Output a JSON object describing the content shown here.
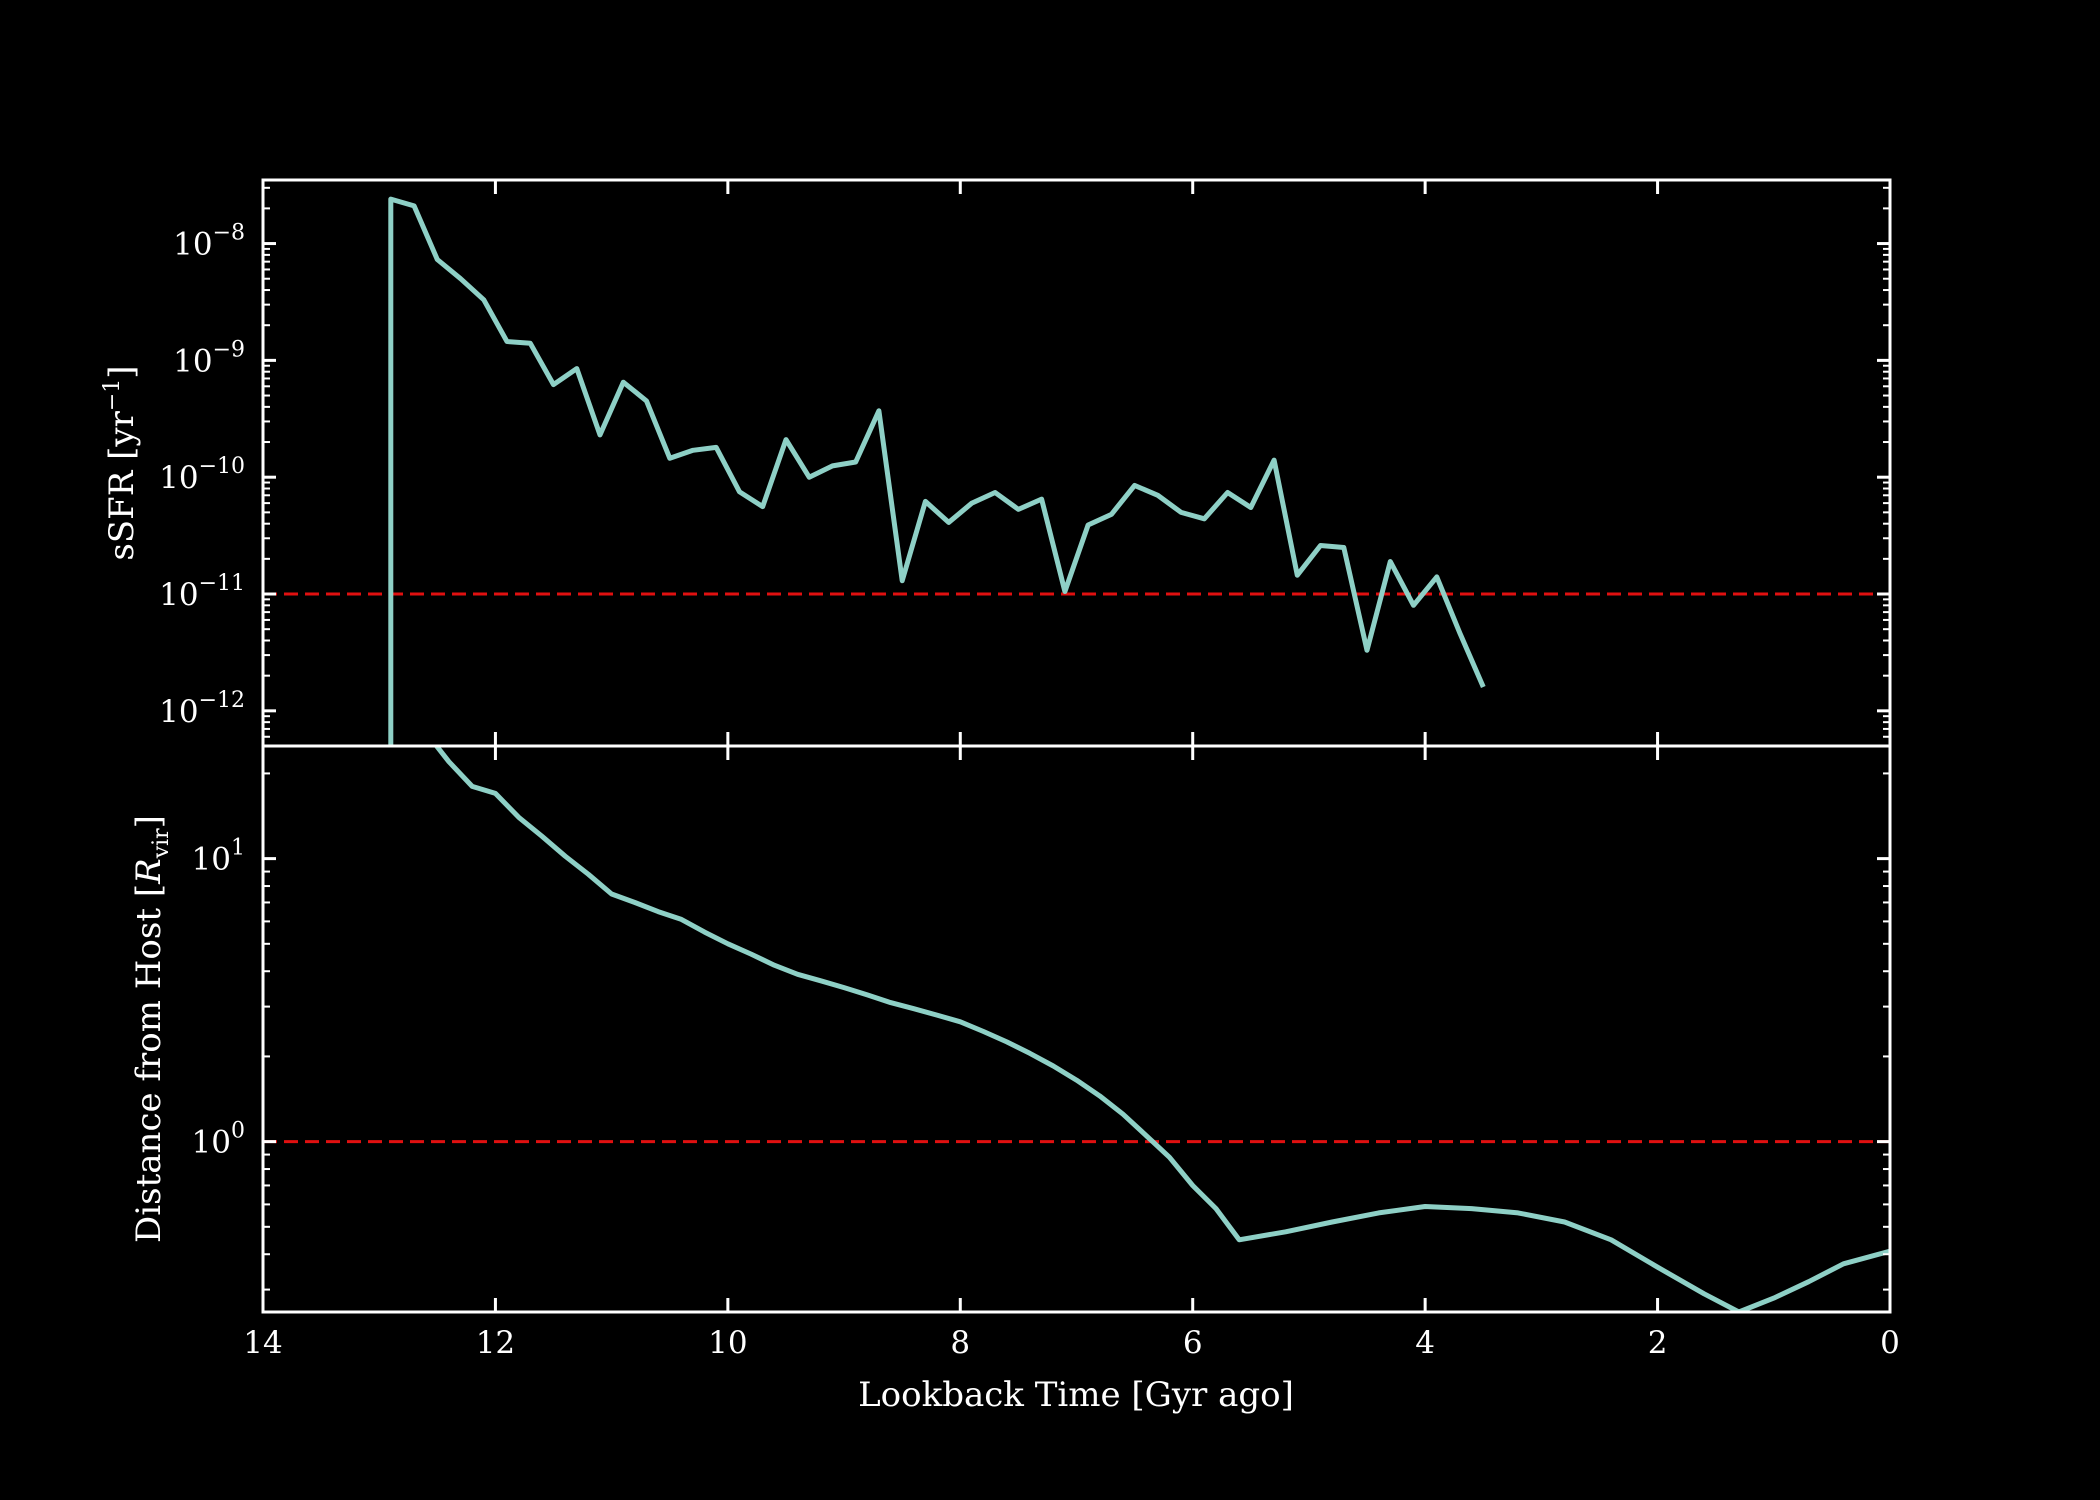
{
  "chart_data": {
    "type": "line",
    "colors": {
      "background": "#000000",
      "axes": "#ffffff",
      "series": "#8ed0c6",
      "threshold": "#e01010"
    },
    "xlabel": "Lookback Time [Gyr ago]",
    "xlim": [
      14,
      0
    ],
    "xticks": [
      14,
      12,
      10,
      8,
      6,
      4,
      2,
      0
    ],
    "xtick_labels": [
      "14",
      "12",
      "10",
      "8",
      "6",
      "4",
      "2",
      "0"
    ],
    "panels": [
      {
        "id": "ssfr",
        "ylabel_main": "sSFR [yr",
        "ylabel_sup": "−1",
        "ylabel_end": "]",
        "yscale": "log",
        "ylim": [
          5e-13,
          3.5e-08
        ],
        "yticks": [
          {
            "value": 1e-08,
            "base": "10",
            "exp": "−8"
          },
          {
            "value": 1e-09,
            "base": "10",
            "exp": "−9"
          },
          {
            "value": 1e-10,
            "base": "10",
            "exp": "−10"
          },
          {
            "value": 1e-11,
            "base": "10",
            "exp": "−11"
          },
          {
            "value": 1e-12,
            "base": "10",
            "exp": "−12"
          }
        ],
        "threshold": 1e-11,
        "series": [
          {
            "x": [
              12.9,
              12.9,
              12.7,
              12.5,
              12.3,
              12.1,
              11.9,
              11.7,
              11.5,
              11.3,
              11.1,
              10.9,
              10.7,
              10.5,
              10.3,
              10.1,
              9.9,
              9.7,
              9.5,
              9.3,
              9.1,
              8.9,
              8.7,
              8.5,
              8.3,
              8.1,
              7.9,
              7.7,
              7.5,
              7.3,
              7.1,
              6.9,
              6.7,
              6.5,
              6.3,
              6.1,
              5.9,
              5.7,
              5.5,
              5.3,
              5.1,
              4.9,
              4.7,
              4.5,
              4.3,
              4.1,
              3.9,
              3.7,
              3.5
            ],
            "y": [
              2e-13,
              2.4e-08,
              2.1e-08,
              7.3e-09,
              5e-09,
              3.3e-09,
              1.45e-09,
              1.4e-09,
              6.2e-10,
              8.5e-10,
              2.3e-10,
              6.5e-10,
              4.5e-10,
              1.45e-10,
              1.7e-10,
              1.8e-10,
              7.5e-11,
              5.6e-11,
              2.1e-10,
              1e-10,
              1.25e-10,
              1.35e-10,
              3.7e-10,
              1.3e-11,
              6.2e-11,
              4.1e-11,
              6e-11,
              7.4e-11,
              5.3e-11,
              6.5e-11,
              1.05e-11,
              3.9e-11,
              4.8e-11,
              8.5e-11,
              7e-11,
              5e-11,
              4.4e-11,
              7.4e-11,
              5.5e-11,
              1.4e-10,
              1.45e-11,
              2.6e-11,
              2.5e-11,
              3.3e-12,
              1.9e-11,
              8e-12,
              1.4e-11,
              4.6e-12,
              1.6e-12
            ]
          }
        ]
      },
      {
        "id": "distance",
        "ylabel_main": "Distance from Host [",
        "ylabel_r": "R",
        "ylabel_sub": "vir",
        "ylabel_end": "]",
        "yscale": "log",
        "ylim": [
          0.25,
          25
        ],
        "yticks": [
          {
            "value": 10,
            "base": "10",
            "exp": "1"
          },
          {
            "value": 1,
            "base": "10",
            "exp": "0"
          }
        ],
        "threshold": 1,
        "series": [
          {
            "x": [
              12.6,
              12.4,
              12.2,
              12.0,
              11.8,
              11.6,
              11.4,
              11.2,
              11.0,
              10.8,
              10.6,
              10.4,
              10.2,
              10.0,
              9.8,
              9.6,
              9.4,
              9.2,
              9.0,
              8.8,
              8.6,
              8.4,
              8.2,
              8.0,
              7.8,
              7.6,
              7.4,
              7.2,
              7.0,
              6.8,
              6.6,
              6.4,
              6.2,
              6.0,
              5.8,
              5.6,
              5.2,
              4.8,
              4.4,
              4.0,
              3.6,
              3.2,
              2.8,
              2.4,
              2.0,
              1.6,
              1.3,
              1.0,
              0.7,
              0.4,
              0.0
            ],
            "y": [
              28,
              22,
              18,
              17,
              14,
              12,
              10.2,
              8.8,
              7.5,
              7,
              6.5,
              6.1,
              5.5,
              5,
              4.6,
              4.2,
              3.9,
              3.7,
              3.5,
              3.3,
              3.1,
              2.95,
              2.8,
              2.65,
              2.45,
              2.25,
              2.05,
              1.85,
              1.65,
              1.45,
              1.25,
              1.05,
              0.88,
              0.7,
              0.58,
              0.45,
              0.48,
              0.52,
              0.56,
              0.59,
              0.58,
              0.56,
              0.52,
              0.45,
              0.36,
              0.29,
              0.25,
              0.28,
              0.32,
              0.37,
              0.41
            ]
          }
        ]
      }
    ]
  }
}
